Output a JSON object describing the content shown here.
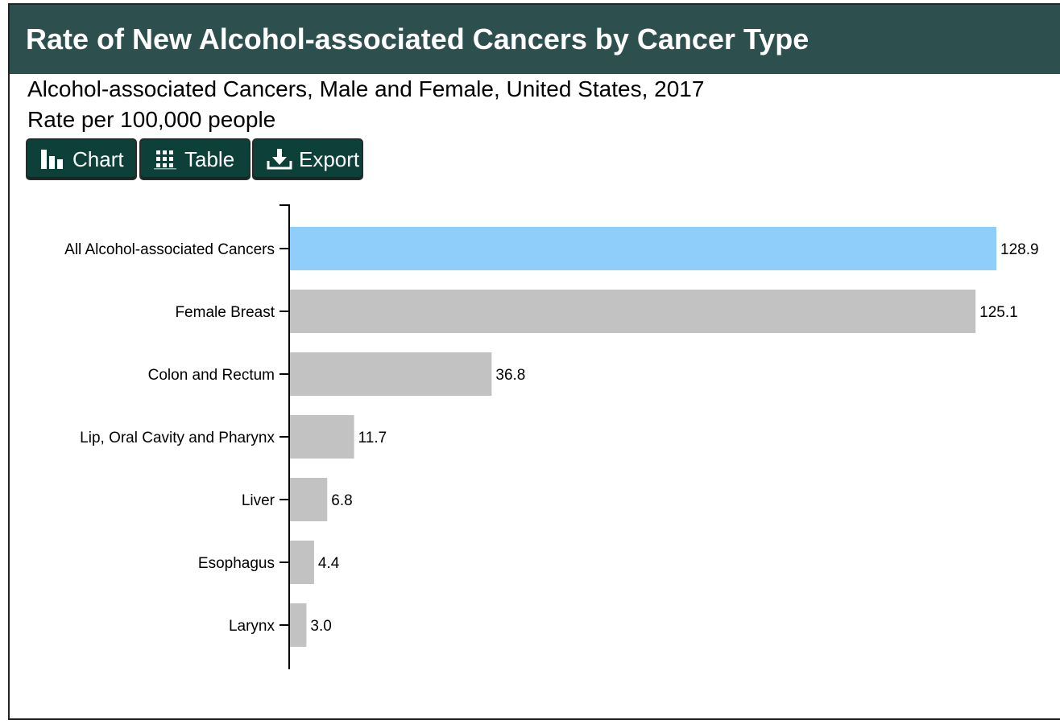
{
  "header": {
    "title": "Rate of New Alcohol-associated Cancers by Cancer Type"
  },
  "subtitle": {
    "line1": "Alcohol-associated Cancers, Male and Female, United States, 2017",
    "line2": "Rate per 100,000 people"
  },
  "toolbar": {
    "chart_label": "Chart",
    "table_label": "Table",
    "export_label": "Export",
    "chart_icon": "bar-chart-icon",
    "table_icon": "grid-icon",
    "export_icon": "download-icon"
  },
  "colors": {
    "header_bg": "#2d4f4e",
    "button_bg": "#0d4038",
    "highlight_bar": "#8fcdfb",
    "bar": "#c2c2c2"
  },
  "chart_data": {
    "type": "bar",
    "orientation": "horizontal",
    "categories": [
      "All Alcohol-associated Cancers",
      "Female Breast",
      "Colon and Rectum",
      "Lip, Oral Cavity and Pharynx",
      "Liver",
      "Esophagus",
      "Larynx"
    ],
    "values": [
      128.9,
      125.1,
      36.8,
      11.7,
      6.8,
      4.4,
      3.0
    ],
    "value_labels": [
      "128.9",
      "125.1",
      "36.8",
      "11.7",
      "6.8",
      "4.4",
      "3.0"
    ],
    "highlight_index": 0,
    "xlim": [
      0,
      128.9
    ],
    "grid": false,
    "legend": "none"
  }
}
